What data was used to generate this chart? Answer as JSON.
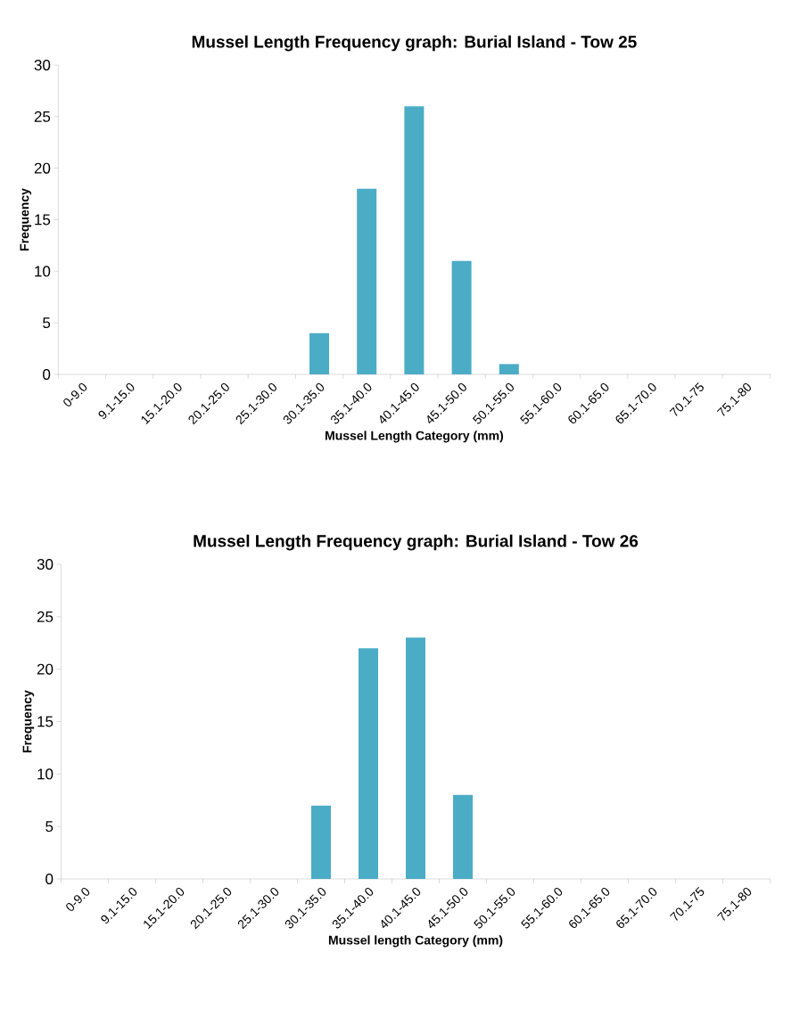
{
  "chart_data": [
    {
      "type": "bar",
      "title": "Mussel Length Frequency graph: Burial Island - Tow 25",
      "xlabel": "Mussel Length Category (mm)",
      "ylabel": "Frequency",
      "categories": [
        "0-9.0",
        "9.1-15.0",
        "15.1-20.0",
        "20.1-25.0",
        "25.1-30.0",
        "30.1-35.0",
        "35.1-40.0",
        "40.1-45.0",
        "45.1-50.0",
        "50.1-55.0",
        "55.1-60.0",
        "60.1-65.0",
        "65.1-70.0",
        "70.1-75",
        "75.1-80"
      ],
      "values": [
        0,
        0,
        0,
        0,
        0,
        4,
        18,
        26,
        11,
        1,
        0,
        0,
        0,
        0,
        0
      ],
      "color": "#4bacc6",
      "ylim": [
        0,
        30
      ],
      "yticks": [
        0,
        5,
        10,
        15,
        20,
        25,
        30
      ]
    },
    {
      "type": "bar",
      "title": "Mussel Length Frequency graph: Burial Island - Tow 26",
      "xlabel": "Mussel length Category (mm)",
      "ylabel": "Frequency",
      "categories": [
        "0-9.0",
        "9.1-15.0",
        "15.1-20.0",
        "20.1-25.0",
        "25.1-30.0",
        "30.1-35.0",
        "35.1-40.0",
        "40.1-45.0",
        "45.1-50.0",
        "50.1-55.0",
        "55.1-60.0",
        "60.1-65.0",
        "65.1-70.0",
        "70.1-75",
        "75.1-80"
      ],
      "values": [
        0,
        0,
        0,
        0,
        0,
        7,
        22,
        23,
        8,
        0,
        0,
        0,
        0,
        0,
        0
      ],
      "color": "#4bacc6",
      "ylim": [
        0,
        30
      ],
      "yticks": [
        0,
        5,
        10,
        15,
        20,
        25,
        30
      ]
    }
  ]
}
